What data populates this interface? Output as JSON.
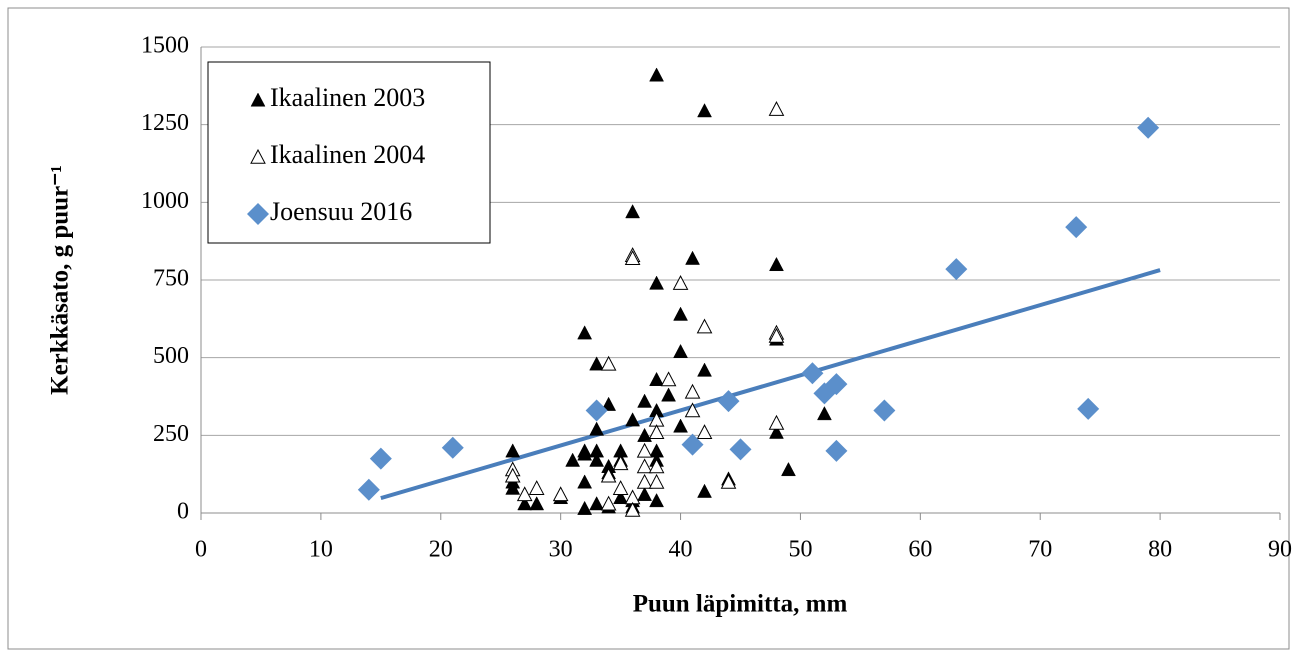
{
  "chart_data": {
    "type": "scatter",
    "x_label": "Puun läpimitta, mm",
    "y_label": "Kerkkäsato, g puur⁻¹",
    "xlim": [
      0,
      90
    ],
    "xticks": [
      0,
      10,
      20,
      30,
      40,
      50,
      60,
      70,
      80,
      90
    ],
    "ylim": [
      0,
      1500
    ],
    "yticks": [
      0,
      250,
      500,
      750,
      1000,
      1250,
      1500
    ],
    "grid": true,
    "legend": "upper left",
    "series": [
      {
        "name": "Ikaalinen 2003",
        "color": "#000000",
        "marker": "triangle-filled",
        "x": [
          26,
          26,
          26,
          27,
          28,
          30,
          31,
          32,
          32,
          32,
          32,
          32,
          33,
          33,
          33,
          33,
          33,
          34,
          34,
          34,
          34,
          35,
          35,
          35,
          36,
          36,
          36,
          36,
          37,
          37,
          37,
          37,
          37,
          38,
          38,
          38,
          38,
          38,
          38,
          38,
          39,
          40,
          40,
          40,
          41,
          42,
          42,
          42,
          44,
          48,
          48,
          48,
          49,
          52
        ],
        "values": [
          200,
          100,
          80,
          30,
          30,
          50,
          170,
          580,
          200,
          190,
          100,
          15,
          480,
          270,
          200,
          170,
          30,
          350,
          150,
          130,
          20,
          200,
          170,
          50,
          970,
          300,
          40,
          20,
          360,
          250,
          200,
          150,
          60,
          1410,
          740,
          430,
          330,
          200,
          170,
          40,
          380,
          640,
          520,
          280,
          820,
          1295,
          460,
          70,
          110,
          800,
          560,
          260,
          140,
          320
        ]
      },
      {
        "name": "Ikaalinen 2004",
        "color": "#000000",
        "marker": "triangle-open",
        "x": [
          26,
          26,
          27,
          28,
          30,
          34,
          34,
          34,
          35,
          35,
          36,
          36,
          36,
          36,
          37,
          37,
          37,
          38,
          38,
          38,
          38,
          39,
          40,
          41,
          41,
          42,
          42,
          44,
          48,
          48,
          48,
          48
        ],
        "values": [
          140,
          120,
          60,
          80,
          60,
          480,
          120,
          30,
          160,
          80,
          830,
          820,
          50,
          10,
          200,
          150,
          100,
          300,
          260,
          150,
          100,
          430,
          740,
          390,
          330,
          600,
          260,
          100,
          1300,
          580,
          570,
          290
        ]
      },
      {
        "name": "Joensuu 2016",
        "color": "#5b8fcb",
        "marker": "diamond",
        "x": [
          14,
          15,
          21,
          33,
          41,
          44,
          45,
          51,
          52,
          53,
          53,
          57,
          63,
          73,
          74,
          79
        ],
        "values": [
          75,
          175,
          210,
          330,
          220,
          360,
          205,
          450,
          385,
          415,
          200,
          330,
          785,
          920,
          335,
          1240
        ]
      }
    ],
    "trendline": {
      "color": "#4a7ebb",
      "x": [
        15,
        80
      ],
      "values": [
        48,
        782
      ]
    }
  }
}
